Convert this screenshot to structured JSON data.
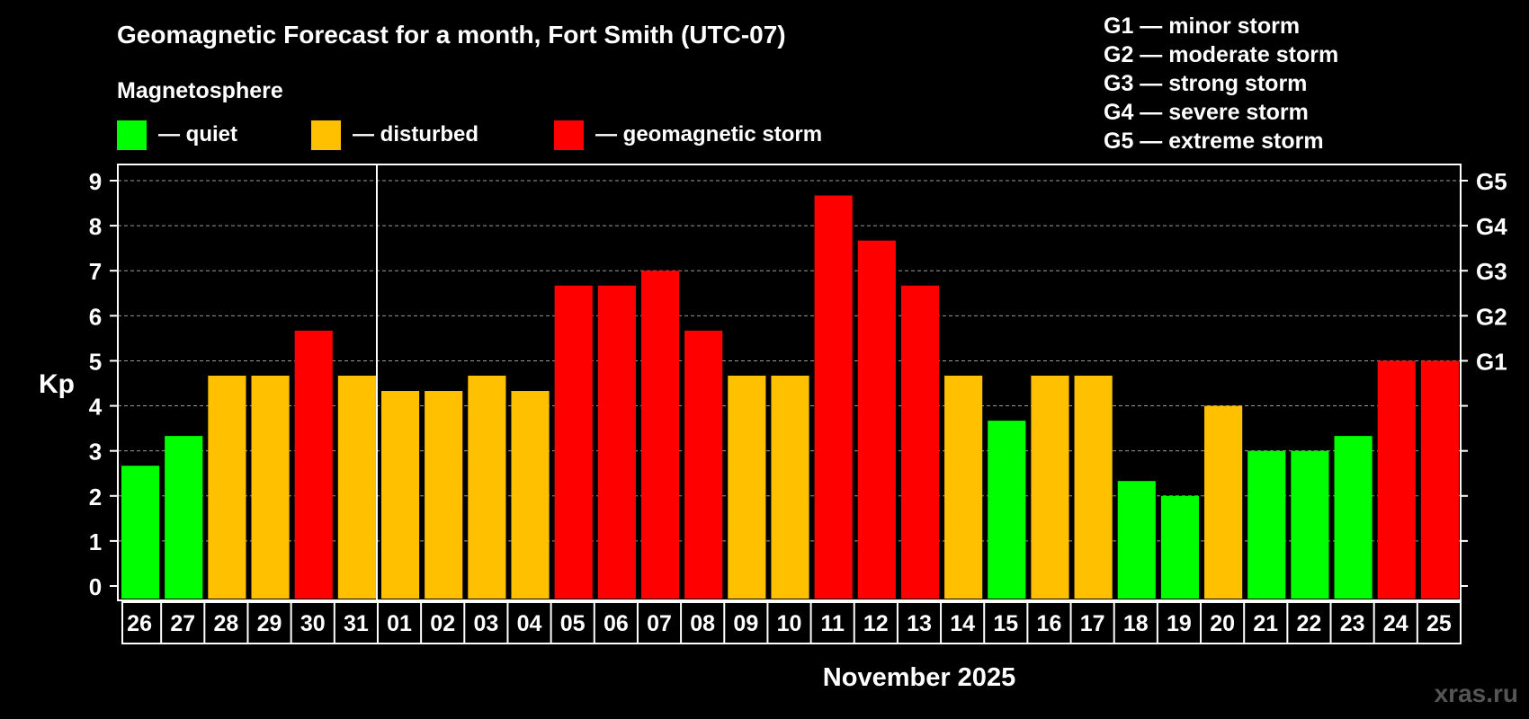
{
  "title": "Geomagnetic Forecast for a month, Fort Smith (UTC-07)",
  "legend": {
    "heading": "Magnetosphere",
    "items": [
      {
        "label": "— quiet",
        "color": "#00FF00"
      },
      {
        "label": "— disturbed",
        "color": "#FFC000"
      },
      {
        "label": "— geomagnetic storm",
        "color": "#FF0000"
      }
    ]
  },
  "g_scale": [
    "G1 — minor storm",
    "G2 — moderate storm",
    "G3 — strong storm",
    "G4 — severe storm",
    "G5 — extreme storm"
  ],
  "watermark": "xras.ru",
  "chart_data": {
    "type": "bar",
    "title": "Geomagnetic Forecast for a month, Fort Smith (UTC-07)",
    "xlabel": "November 2025",
    "ylabel": "Kp",
    "ylim": [
      0,
      9
    ],
    "y_ticks": [
      "0",
      "1",
      "2",
      "3",
      "4",
      "5",
      "6",
      "7",
      "8",
      "9"
    ],
    "right_ticks": [
      {
        "label": "G1",
        "kp": 5
      },
      {
        "label": "G2",
        "kp": 6
      },
      {
        "label": "G3",
        "kp": 7
      },
      {
        "label": "G4",
        "kp": 8
      },
      {
        "label": "G5",
        "kp": 9
      }
    ],
    "categories": [
      "26",
      "27",
      "28",
      "29",
      "30",
      "31",
      "01",
      "02",
      "03",
      "04",
      "05",
      "06",
      "07",
      "08",
      "09",
      "10",
      "11",
      "12",
      "13",
      "14",
      "15",
      "16",
      "17",
      "18",
      "19",
      "20",
      "21",
      "22",
      "23",
      "24",
      "25"
    ],
    "values": [
      2.67,
      3.33,
      4.67,
      4.67,
      5.67,
      4.67,
      4.33,
      4.33,
      4.67,
      4.33,
      6.67,
      6.67,
      7.0,
      5.67,
      4.67,
      4.67,
      8.67,
      7.67,
      6.67,
      4.67,
      3.67,
      4.67,
      4.67,
      2.33,
      2.0,
      4.0,
      3.0,
      3.0,
      3.33,
      5.0,
      5.0
    ],
    "levels": [
      "quiet",
      "quiet",
      "disturbed",
      "disturbed",
      "storm",
      "disturbed",
      "disturbed",
      "disturbed",
      "disturbed",
      "disturbed",
      "storm",
      "storm",
      "storm",
      "storm",
      "disturbed",
      "disturbed",
      "storm",
      "storm",
      "storm",
      "disturbed",
      "quiet",
      "disturbed",
      "disturbed",
      "quiet",
      "quiet",
      "disturbed",
      "quiet",
      "quiet",
      "quiet",
      "storm",
      "storm"
    ],
    "level_colors": {
      "quiet": "#00FF00",
      "disturbed": "#FFC000",
      "storm": "#FF0000"
    },
    "month_divider_after_index": 5,
    "grid": true
  }
}
